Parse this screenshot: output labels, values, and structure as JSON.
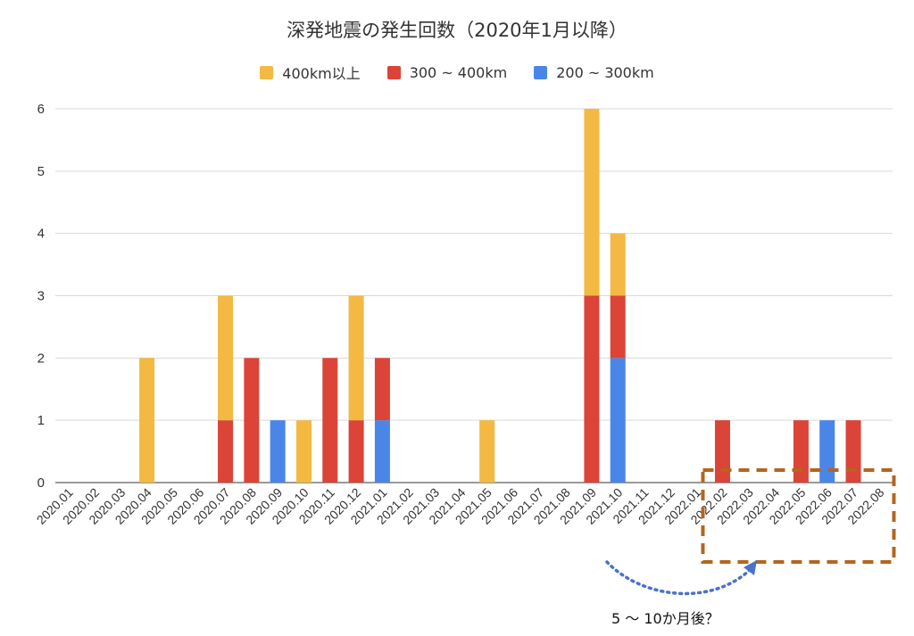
{
  "chart_data": {
    "type": "bar",
    "stacked": true,
    "title": "深発地震の発生回数（2020年1月以降）",
    "categories": [
      "2020.01",
      "2020.02",
      "2020.03",
      "2020.04",
      "2020.05",
      "2020.06",
      "2020.07",
      "2020.08",
      "2020.09",
      "2020.10",
      "2020.11",
      "2020.12",
      "2021.01",
      "2021.02",
      "2021.03",
      "2021.04",
      "2021.05",
      "2021.06",
      "2021.07",
      "2021.08",
      "2021.09",
      "2021.10",
      "2021.11",
      "2021.12",
      "2022.01",
      "2022.02",
      "2022.03",
      "2022.04",
      "2022.05",
      "2022.06",
      "2022.07",
      "2022.08"
    ],
    "series": [
      {
        "name": "200 ~ 300km",
        "color": "#4a86e8",
        "values": [
          0,
          0,
          0,
          0,
          0,
          0,
          0,
          0,
          1,
          0,
          0,
          0,
          1,
          0,
          0,
          0,
          0,
          0,
          0,
          0,
          0,
          2,
          0,
          0,
          0,
          0,
          0,
          0,
          0,
          1,
          0,
          0
        ]
      },
      {
        "name": "300 ~ 400km",
        "color": "#db4437",
        "values": [
          0,
          0,
          0,
          0,
          0,
          0,
          1,
          2,
          0,
          0,
          2,
          1,
          1,
          0,
          0,
          0,
          0,
          0,
          0,
          0,
          3,
          1,
          0,
          0,
          0,
          1,
          0,
          0,
          1,
          0,
          1,
          0
        ]
      },
      {
        "name": "400km以上",
        "color": "#f4b942",
        "values": [
          0,
          0,
          0,
          2,
          0,
          0,
          2,
          0,
          0,
          1,
          0,
          2,
          0,
          0,
          0,
          0,
          1,
          0,
          0,
          0,
          3,
          1,
          0,
          0,
          0,
          0,
          0,
          0,
          0,
          0,
          0,
          0
        ]
      }
    ],
    "legend_order": [
      "400km以上",
      "300 ~ 400km",
      "200 ~ 300km"
    ],
    "legend_position": "top",
    "ylim": [
      0,
      6
    ],
    "yticks": [
      0,
      1,
      2,
      3,
      4,
      5,
      6
    ],
    "grid": true,
    "annotation": {
      "text": "5 〜 10か月後？",
      "highlight_categories": [
        "2022.02",
        "2022.08"
      ],
      "highlight_color": "#b5651d",
      "arrow_color": "#4a72c9"
    }
  }
}
